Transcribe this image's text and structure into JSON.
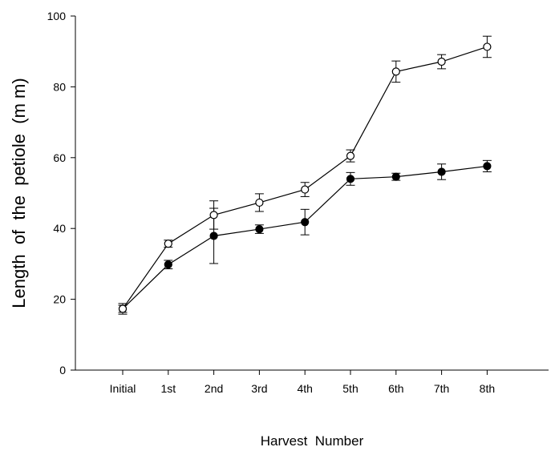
{
  "chart_data": {
    "type": "line",
    "title": "",
    "xlabel": "Harvest  Number",
    "ylabel": "Length  of  the  petiole  (m m)",
    "categories": [
      "Initial",
      "1st",
      "2nd",
      "3rd",
      "4th",
      "5th",
      "6th",
      "7th",
      "8th"
    ],
    "ylim": [
      0,
      100
    ],
    "yticks": [
      0,
      20,
      40,
      60,
      80,
      100
    ],
    "grid": false,
    "legend": "none",
    "series": [
      {
        "marker": "open-circle",
        "color": "#000000",
        "values": [
          17.3,
          35.7,
          43.8,
          47.3,
          51.0,
          60.5,
          84.3,
          87.1,
          91.3
        ],
        "error": [
          1.0,
          1.0,
          4.0,
          2.5,
          2.0,
          1.7,
          3.0,
          2.0,
          3.0
        ]
      },
      {
        "marker": "filled-circle",
        "color": "#000000",
        "values": [
          17.3,
          29.8,
          37.9,
          39.8,
          41.8,
          54.0,
          54.6,
          56.0,
          57.6
        ],
        "error": [
          1.5,
          1.2,
          7.8,
          1.2,
          3.6,
          1.8,
          1.0,
          2.2,
          1.6
        ]
      }
    ]
  }
}
